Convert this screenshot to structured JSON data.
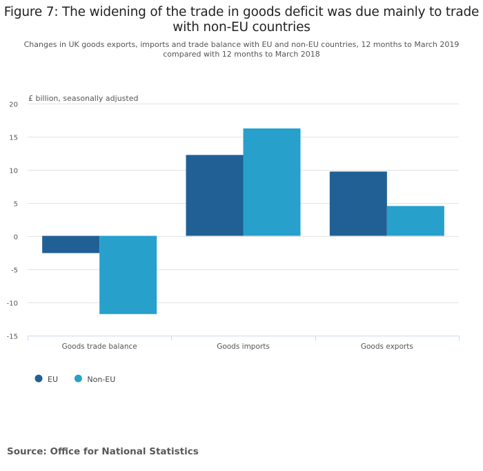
{
  "chart_data": {
    "type": "bar",
    "title": "Figure 7: The widening of the trade in goods deficit was due mainly to trade with non-EU countries",
    "title_lines": [
      "Figure 7: The widening of the trade in goods deficit was due mainly to trade",
      "with non-EU countries"
    ],
    "subtitle_lines": [
      "Changes in UK goods exports, imports and trade balance with EU and non-EU countries, 12 months to March 2019",
      "compared with 12 months to March 2018"
    ],
    "ylabel": "£ billion, seasonally adjusted",
    "xlabel": "",
    "categories": [
      "Goods trade balance",
      "Goods imports",
      "Goods exports"
    ],
    "series": [
      {
        "name": "EU",
        "color": "#206095",
        "values": [
          -2.6,
          12.2,
          9.7
        ]
      },
      {
        "name": "Non-EU",
        "color": "#27a0cc",
        "values": [
          -11.8,
          16.2,
          4.5
        ]
      }
    ],
    "ylim": [
      -15,
      20
    ],
    "yticks": [
      20,
      15,
      10,
      5,
      0,
      -5,
      -10,
      -15
    ],
    "grid": true,
    "legend_position": "bottom-left"
  },
  "source": "Source: Office for National Statistics"
}
